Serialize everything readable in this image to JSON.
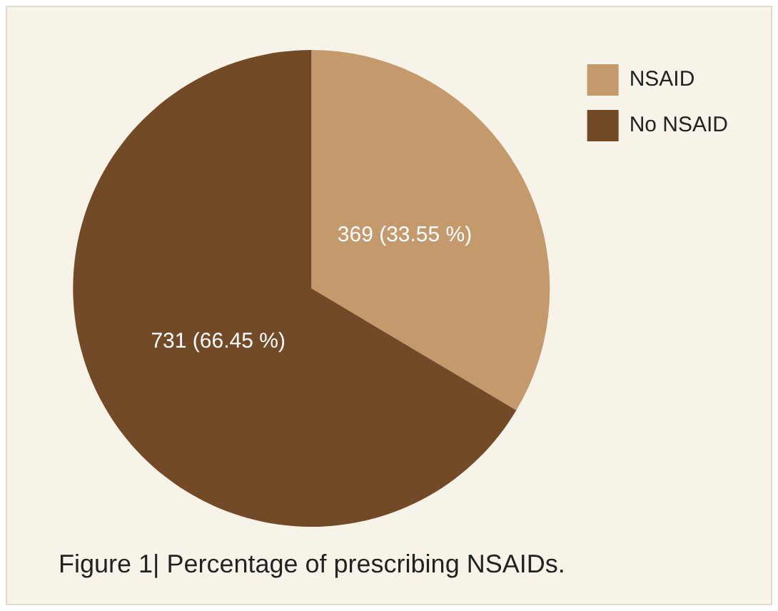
{
  "chart_data": {
    "type": "pie",
    "title": "Figure 1| Percentage of prescribing NSAIDs.",
    "categories": [
      "NSAID",
      "No NSAID"
    ],
    "values": [
      369,
      731
    ],
    "colors": [
      "#c49a6c",
      "#734a27"
    ],
    "value_labels": [
      "369 (33.55 %)",
      "731 (66.45 %)"
    ],
    "legend": "top right"
  }
}
